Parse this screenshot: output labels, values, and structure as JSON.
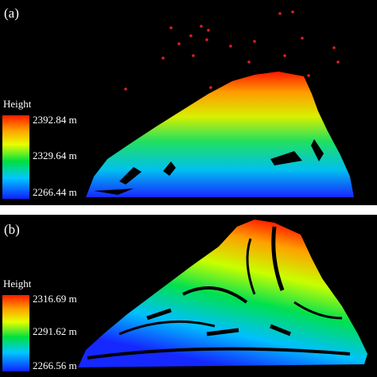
{
  "panels": [
    {
      "label": "(a)",
      "legend": {
        "title": "Height",
        "labels": [
          "2392.84 m",
          "2329.64 m",
          "2266.44 m"
        ]
      }
    },
    {
      "label": "(b)",
      "legend": {
        "title": "Height",
        "labels": [
          "2316.69 m",
          "2291.62 m",
          "2266.56 m"
        ]
      }
    }
  ]
}
